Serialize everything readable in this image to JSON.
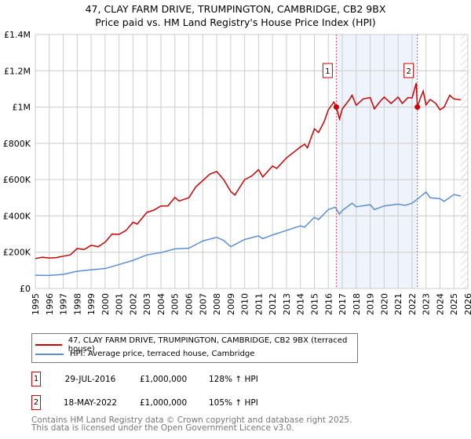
{
  "chart_data": {
    "type": "line",
    "title": "47, CLAY FARM DRIVE, TRUMPINGTON, CAMBRIDGE, CB2 9BX",
    "subtitle": "Price paid vs. HM Land Registry's House Price Index (HPI)",
    "xlim": [
      1995,
      2026
    ],
    "ylim": [
      0,
      1400000
    ],
    "x_ticks": [
      "1995",
      "1996",
      "1997",
      "1998",
      "1999",
      "2000",
      "2001",
      "2002",
      "2003",
      "2004",
      "2005",
      "2006",
      "2007",
      "2008",
      "2009",
      "2010",
      "2011",
      "2012",
      "2013",
      "2014",
      "2015",
      "2016",
      "2017",
      "2018",
      "2019",
      "2020",
      "2021",
      "2022",
      "2023",
      "2024",
      "2025",
      "2026"
    ],
    "y_ticks": [
      {
        "v": 0,
        "label": "£0"
      },
      {
        "v": 200000,
        "label": "£200K"
      },
      {
        "v": 400000,
        "label": "£400K"
      },
      {
        "v": 600000,
        "label": "£600K"
      },
      {
        "v": 800000,
        "label": "£800K"
      },
      {
        "v": 1000000,
        "label": "£1M"
      },
      {
        "v": 1200000,
        "label": "£1.2M"
      },
      {
        "v": 1400000,
        "label": "£1.4M"
      }
    ],
    "grid": true,
    "series": [
      {
        "name": "47, CLAY FARM DRIVE, TRUMPINGTON, CAMBRIDGE, CB2 9BX (terraced house)",
        "color": "#cc0000",
        "points": [
          [
            1995,
            165000
          ],
          [
            1995.5,
            172000
          ],
          [
            1996,
            168000
          ],
          [
            1996.5,
            170000
          ],
          [
            1997,
            178000
          ],
          [
            1997.5,
            185000
          ],
          [
            1998,
            220000
          ],
          [
            1998.5,
            215000
          ],
          [
            1999,
            238000
          ],
          [
            1999.5,
            230000
          ],
          [
            2000,
            255000
          ],
          [
            2000.5,
            300000
          ],
          [
            2001,
            298000
          ],
          [
            2001.5,
            320000
          ],
          [
            2002,
            365000
          ],
          [
            2002.3,
            355000
          ],
          [
            2003,
            420000
          ],
          [
            2003.5,
            432000
          ],
          [
            2004,
            455000
          ],
          [
            2004.5,
            455000
          ],
          [
            2005,
            502000
          ],
          [
            2005.3,
            482000
          ],
          [
            2006,
            500000
          ],
          [
            2006.5,
            560000
          ],
          [
            2007,
            595000
          ],
          [
            2007.5,
            630000
          ],
          [
            2008,
            645000
          ],
          [
            2008.5,
            600000
          ],
          [
            2009,
            535000
          ],
          [
            2009.3,
            515000
          ],
          [
            2010,
            600000
          ],
          [
            2010.5,
            620000
          ],
          [
            2011,
            655000
          ],
          [
            2011.3,
            615000
          ],
          [
            2012,
            675000
          ],
          [
            2012.3,
            662000
          ],
          [
            2013,
            720000
          ],
          [
            2013.5,
            750000
          ],
          [
            2014,
            780000
          ],
          [
            2014.3,
            795000
          ],
          [
            2014.5,
            775000
          ],
          [
            2015,
            880000
          ],
          [
            2015.3,
            860000
          ],
          [
            2015.7,
            920000
          ],
          [
            2016,
            985000
          ],
          [
            2016.4,
            1028000
          ],
          [
            2016.57,
            1000000
          ],
          [
            2016.8,
            935000
          ],
          [
            2017,
            990000
          ],
          [
            2017.5,
            1040000
          ],
          [
            2017.7,
            1065000
          ],
          [
            2018,
            1010000
          ],
          [
            2018.5,
            1045000
          ],
          [
            2019,
            1052000
          ],
          [
            2019.3,
            990000
          ],
          [
            2019.7,
            1030000
          ],
          [
            2020,
            1055000
          ],
          [
            2020.5,
            1020000
          ],
          [
            2021,
            1055000
          ],
          [
            2021.3,
            1020000
          ],
          [
            2021.7,
            1052000
          ],
          [
            2022,
            1050000
          ],
          [
            2022.3,
            1132000
          ],
          [
            2022.38,
            1000000
          ],
          [
            2022.6,
            1050000
          ],
          [
            2022.8,
            1088000
          ],
          [
            2023,
            1012000
          ],
          [
            2023.3,
            1042000
          ],
          [
            2023.7,
            1020000
          ],
          [
            2024,
            985000
          ],
          [
            2024.3,
            1000000
          ],
          [
            2024.7,
            1065000
          ],
          [
            2025,
            1045000
          ],
          [
            2025.5,
            1040000
          ]
        ]
      },
      {
        "name": "HPI: Average price, terraced house, Cambridge",
        "color": "#5b8fd4",
        "points": [
          [
            1995,
            73000
          ],
          [
            1996,
            72000
          ],
          [
            1997,
            78000
          ],
          [
            1998,
            95000
          ],
          [
            1999,
            103000
          ],
          [
            2000,
            110000
          ],
          [
            2001,
            132000
          ],
          [
            2002,
            155000
          ],
          [
            2003,
            185000
          ],
          [
            2004,
            198000
          ],
          [
            2005,
            218000
          ],
          [
            2006,
            222000
          ],
          [
            2007,
            262000
          ],
          [
            2008,
            282000
          ],
          [
            2008.5,
            265000
          ],
          [
            2009,
            230000
          ],
          [
            2010,
            270000
          ],
          [
            2011,
            290000
          ],
          [
            2011.3,
            275000
          ],
          [
            2012,
            295000
          ],
          [
            2013,
            320000
          ],
          [
            2014,
            345000
          ],
          [
            2014.3,
            338000
          ],
          [
            2015,
            392000
          ],
          [
            2015.3,
            380000
          ],
          [
            2016,
            435000
          ],
          [
            2016.5,
            448000
          ],
          [
            2016.8,
            410000
          ],
          [
            2017,
            430000
          ],
          [
            2017.7,
            470000
          ],
          [
            2018,
            450000
          ],
          [
            2019,
            462000
          ],
          [
            2019.3,
            435000
          ],
          [
            2020,
            455000
          ],
          [
            2021,
            465000
          ],
          [
            2021.5,
            458000
          ],
          [
            2022,
            470000
          ],
          [
            2022.5,
            500000
          ],
          [
            2023,
            532000
          ],
          [
            2023.3,
            500000
          ],
          [
            2024,
            495000
          ],
          [
            2024.3,
            480000
          ],
          [
            2025,
            518000
          ],
          [
            2025.5,
            510000
          ]
        ]
      }
    ],
    "sales": [
      {
        "label": "1",
        "x": 2016.57,
        "value": 1000000,
        "date": "29-JUL-2016",
        "price": "£1,000,000",
        "hpi": "128% ↑ HPI"
      },
      {
        "label": "2",
        "x": 2022.38,
        "value": 1000000,
        "date": "18-MAY-2022",
        "price": "£1,000,000",
        "hpi": "105% ↑ HPI"
      }
    ],
    "shaded_range": [
      2016.57,
      2022.38
    ],
    "forecast_from": 2025.5,
    "legend_position": "bottom"
  },
  "footer": {
    "line1": "Contains HM Land Registry data © Crown copyright and database right 2025.",
    "line2": "This data is licensed under the Open Government Licence v3.0."
  }
}
